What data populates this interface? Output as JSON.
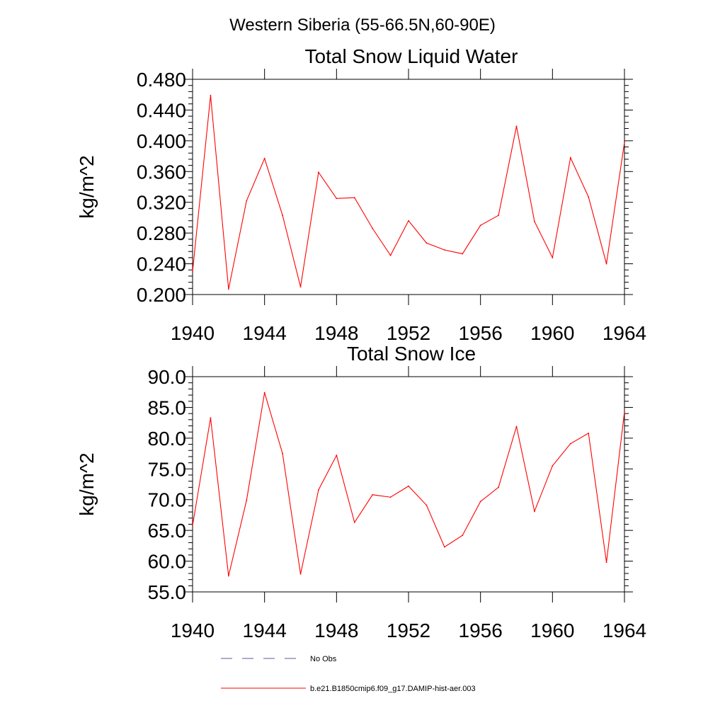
{
  "figure_title": "Western Siberia (55-66.5N,60-90E)",
  "legend": {
    "entries": [
      {
        "label": "No Obs",
        "color": "#5a5a9a",
        "style": "dashed"
      },
      {
        "label": "b.e21.B1850cmip6.f09_g17.DAMIP-hist-aer.003",
        "color": "#ff0000",
        "style": "solid"
      }
    ]
  },
  "chart_data": [
    {
      "type": "line",
      "title": "Total Snow Liquid Water",
      "xlabel": "",
      "ylabel": "kg/m^2",
      "xlim": [
        1940,
        1964
      ],
      "ylim": [
        0.2,
        0.48
      ],
      "x_ticks": [
        "1940",
        "1944",
        "1948",
        "1952",
        "1956",
        "1960",
        "1964"
      ],
      "y_ticks": [
        "0.200",
        "0.240",
        "0.280",
        "0.320",
        "0.360",
        "0.400",
        "0.440",
        "0.480"
      ],
      "x": [
        1940,
        1941,
        1942,
        1943,
        1944,
        1945,
        1946,
        1947,
        1948,
        1949,
        1950,
        1951,
        1952,
        1953,
        1954,
        1955,
        1956,
        1957,
        1958,
        1959,
        1960,
        1961,
        1962,
        1963,
        1964
      ],
      "series": [
        {
          "color": "#ff0000",
          "values": [
            0.23,
            0.459,
            0.207,
            0.322,
            0.377,
            0.303,
            0.21,
            0.359,
            0.325,
            0.326,
            0.286,
            0.251,
            0.296,
            0.267,
            0.258,
            0.253,
            0.29,
            0.303,
            0.419,
            0.295,
            0.248,
            0.378,
            0.327,
            0.24,
            0.398
          ]
        }
      ]
    },
    {
      "type": "line",
      "title": "Total Snow Ice",
      "xlabel": "",
      "ylabel": "kg/m^2",
      "xlim": [
        1940,
        1964
      ],
      "ylim": [
        55.0,
        90.0
      ],
      "x_ticks": [
        "1940",
        "1944",
        "1948",
        "1952",
        "1956",
        "1960",
        "1964"
      ],
      "y_ticks": [
        "55.0",
        "60.0",
        "65.0",
        "70.0",
        "75.0",
        "80.0",
        "85.0",
        "90.0"
      ],
      "x": [
        1940,
        1941,
        1942,
        1943,
        1944,
        1945,
        1946,
        1947,
        1948,
        1949,
        1950,
        1951,
        1952,
        1953,
        1954,
        1955,
        1956,
        1957,
        1958,
        1959,
        1960,
        1961,
        1962,
        1963,
        1964
      ],
      "series": [
        {
          "color": "#ff0000",
          "values": [
            65.8,
            83.3,
            57.6,
            69.9,
            87.4,
            77.5,
            57.9,
            71.6,
            77.2,
            66.3,
            70.8,
            70.4,
            72.2,
            69.1,
            62.3,
            64.2,
            69.7,
            72.0,
            81.9,
            68.1,
            75.5,
            79.1,
            80.8,
            59.8,
            84.3
          ]
        }
      ]
    }
  ]
}
